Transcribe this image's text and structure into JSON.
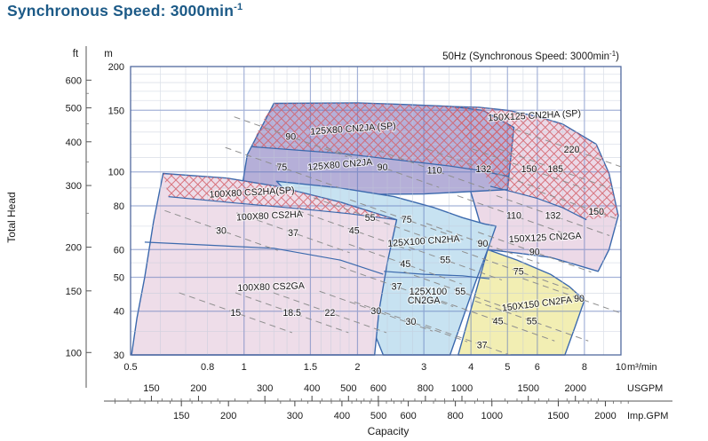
{
  "title": {
    "text": "Synchronous Speed: 3000min",
    "sup": "-1"
  },
  "chart_data": {
    "type": "area",
    "inner_title": {
      "prefix": "50Hz (Synchronous Speed: 3000min",
      "sup": "-1",
      "suffix": ")"
    },
    "axes": {
      "x": {
        "unit": "m³/min",
        "range": [
          0.5,
          10
        ],
        "labeled_ticks": [
          0.5,
          0.8,
          1,
          1.5,
          2,
          3,
          4,
          5,
          6,
          8,
          10
        ],
        "major": [
          1,
          1.5,
          2,
          3,
          4,
          5,
          6,
          8
        ],
        "minor": [
          0.6,
          0.7,
          0.8,
          0.9,
          1.1,
          1.2,
          1.3,
          1.4,
          1.6,
          1.7,
          1.8,
          1.9,
          2.2,
          2.4,
          2.6,
          2.8,
          3.5,
          4.5,
          5.5,
          7,
          9
        ]
      },
      "y": {
        "unit": "m",
        "label": "Total Head",
        "range": [
          30,
          200
        ],
        "labeled_ticks": [
          200,
          150,
          100,
          80,
          60,
          50,
          40,
          30
        ],
        "major": [
          40,
          50,
          60,
          80,
          100,
          150
        ],
        "minor": [
          35,
          45,
          55,
          70,
          90,
          110,
          120,
          130,
          140,
          160,
          170,
          180,
          190
        ]
      },
      "ft": {
        "unit": "ft",
        "labeled_ticks": [
          600,
          500,
          400,
          300,
          200,
          150,
          100
        ],
        "minor": [
          250,
          350,
          450,
          550
        ]
      },
      "usgpm": {
        "unit": "USGPM",
        "labeled_ticks": [
          150,
          200,
          300,
          400,
          500,
          600,
          800,
          1000,
          1500,
          2000
        ],
        "per_m3min": 264.172
      },
      "impgpm": {
        "unit": "Imp.GPM",
        "labeled_ticks": [
          150,
          200,
          300,
          400,
          500,
          600,
          800,
          1000,
          1500,
          2000
        ],
        "per_m3min": 219.969
      },
      "gpm_minor_step_ranges": [
        [
          100,
          200,
          10
        ],
        [
          200,
          600,
          25
        ],
        [
          600,
          1000,
          50
        ],
        [
          1000,
          2400,
          100
        ]
      ],
      "capacity_label": "Capacity"
    },
    "style": {
      "region_stroke": "#3b69ad",
      "grid_minor": "#c2cad9",
      "grid_major": "#5d76ba",
      "border": "#51699f",
      "hatch_color": "#d4606a",
      "dash_color": "#8f8f8f"
    },
    "regions": [
      {
        "id": "150x125-family",
        "fill": "#ecd9e7",
        "outline": [
          [
            3.37,
            154
          ],
          [
            4.2,
            153
          ],
          [
            5.0,
            150
          ],
          [
            6.0,
            144
          ],
          [
            7.0,
            137
          ],
          [
            8.6,
            120
          ],
          [
            9.3,
            99
          ],
          [
            9.84,
            75
          ],
          [
            9.3,
            60
          ],
          [
            8.7,
            52
          ],
          [
            7.5,
            54.5
          ],
          [
            6.5,
            57
          ],
          [
            5.4,
            58.5
          ],
          [
            4.43,
            60
          ],
          [
            4.1,
            80
          ],
          [
            3.7,
            115
          ]
        ],
        "hatch": [
          [
            3.37,
            154
          ],
          [
            4.2,
            153
          ],
          [
            5.0,
            150
          ],
          [
            6.0,
            144
          ],
          [
            7.0,
            137
          ],
          [
            8.6,
            120
          ],
          [
            9.3,
            99
          ],
          [
            9.84,
            75
          ],
          [
            8.1,
            73
          ],
          [
            7.0,
            79
          ],
          [
            6.0,
            84
          ],
          [
            5.2,
            87.5
          ],
          [
            4.5,
            91
          ],
          [
            4.0,
            120
          ]
        ],
        "boundaries": [
          [
            [
              4.5,
              91
            ],
            [
              5.2,
              87.5
            ],
            [
              6.0,
              84
            ],
            [
              7.0,
              79
            ],
            [
              8.1,
              73
            ]
          ]
        ],
        "names": [
          {
            "text": "150X125 CN2HA (SP)",
            "v": 5.9,
            "m": 145,
            "rot": -3
          },
          {
            "text": "150X125 CN2GA",
            "v": 6.3,
            "m": 65,
            "rot": -3
          }
        ],
        "powers": [
          {
            "text": "150",
            "v": 5.7,
            "m": 102
          },
          {
            "text": "185",
            "v": 6.7,
            "m": 102
          },
          {
            "text": "220",
            "v": 7.4,
            "m": 116
          },
          {
            "text": "110",
            "v": 5.2,
            "m": 75
          },
          {
            "text": "132",
            "v": 6.6,
            "m": 75
          },
          {
            "text": "150",
            "v": 8.6,
            "m": 77
          },
          {
            "text": "90",
            "v": 5.9,
            "m": 59
          }
        ]
      },
      {
        "id": "125x80-family",
        "fill": "#b5afd8",
        "outline": [
          [
            0.98,
            86
          ],
          [
            1.02,
            112
          ],
          [
            1.2,
            157
          ],
          [
            2.0,
            157.5
          ],
          [
            2.6,
            156
          ],
          [
            3.5,
            154
          ],
          [
            4.3,
            150
          ],
          [
            5.2,
            134
          ],
          [
            5.0,
            89
          ],
          [
            3.0,
            86.5
          ],
          [
            1.5,
            86
          ]
        ],
        "hatch": [
          [
            1.05,
            118
          ],
          [
            1.1,
            135
          ],
          [
            1.2,
            157
          ],
          [
            2.0,
            157.5
          ],
          [
            2.6,
            156
          ],
          [
            3.5,
            154
          ],
          [
            4.3,
            150
          ],
          [
            5.2,
            134
          ],
          [
            5.05,
            97
          ],
          [
            4.2,
            101
          ],
          [
            3.5,
            104
          ],
          [
            2.6,
            108
          ],
          [
            1.8,
            113
          ]
        ],
        "boundaries": [
          [
            [
              1.05,
              118
            ],
            [
              1.8,
              113
            ],
            [
              2.6,
              108
            ],
            [
              3.5,
              104
            ],
            [
              4.2,
              101
            ],
            [
              5.05,
              97
            ]
          ]
        ],
        "names": [
          {
            "text": "125X80 CN2JA (SP)",
            "v": 1.95,
            "m": 133,
            "rot": -4
          },
          {
            "text": "125X80 CN2JA",
            "v": 1.8,
            "m": 105,
            "rot": -5
          }
        ],
        "powers": [
          {
            "text": "90",
            "v": 1.33,
            "m": 126
          },
          {
            "text": "75",
            "v": 1.26,
            "m": 103
          },
          {
            "text": "90",
            "v": 2.33,
            "m": 103
          },
          {
            "text": "110",
            "v": 3.2,
            "m": 101
          },
          {
            "text": "132",
            "v": 4.32,
            "m": 102
          }
        ]
      },
      {
        "id": "125x100-family",
        "fill": "#c7e2f1",
        "outline": [
          [
            2.34,
            30
          ],
          [
            1.9,
            52
          ],
          [
            1.55,
            72
          ],
          [
            1.22,
            94
          ],
          [
            1.8,
            90
          ],
          [
            2.5,
            85
          ],
          [
            3.2,
            79
          ],
          [
            3.8,
            74
          ],
          [
            4.35,
            71
          ],
          [
            4.66,
            70
          ],
          [
            4.43,
            60
          ],
          [
            4.1,
            48
          ],
          [
            3.8,
            38
          ],
          [
            3.52,
            30
          ]
        ],
        "boundaries": [
          [
            [
              2.35,
              52
            ],
            [
              3.0,
              51
            ],
            [
              3.8,
              50.5
            ],
            [
              4.48,
              49.5
            ]
          ]
        ],
        "names": [
          {
            "text": "125X100 CN2HA",
            "v": 3.0,
            "m": 63.5,
            "rot": -4
          },
          {
            "text": "125X100",
            "v": 3.08,
            "m": 45.5,
            "rot": 0
          },
          {
            "text": "CN2GA",
            "v": 3.0,
            "m": 43,
            "rot": 0
          }
        ],
        "powers": [
          {
            "text": "75",
            "v": 2.7,
            "m": 73
          },
          {
            "text": "90",
            "v": 4.3,
            "m": 62.5
          },
          {
            "text": "45",
            "v": 2.68,
            "m": 54.5
          },
          {
            "text": "55",
            "v": 3.42,
            "m": 56
          },
          {
            "text": "37",
            "v": 2.54,
            "m": 47
          },
          {
            "text": "55",
            "v": 3.75,
            "m": 45.5
          },
          {
            "text": "30",
            "v": 2.77,
            "m": 37.3
          }
        ]
      },
      {
        "id": "150x150-family",
        "fill": "#f2eeb3",
        "outline": [
          [
            4.43,
            60
          ],
          [
            5.3,
            56
          ],
          [
            6.5,
            51
          ],
          [
            7.3,
            47
          ],
          [
            8.0,
            43
          ],
          [
            7.55,
            36
          ],
          [
            7.1,
            30
          ],
          [
            3.7,
            30
          ]
        ],
        "names": [
          {
            "text": "150X150 CN2FA",
            "v": 6.0,
            "m": 42,
            "rot": -7
          }
        ],
        "powers": [
          {
            "text": "75",
            "v": 5.35,
            "m": 52
          },
          {
            "text": "90",
            "v": 7.75,
            "m": 43.5
          },
          {
            "text": "45",
            "v": 4.72,
            "m": 37.5
          },
          {
            "text": "55",
            "v": 5.8,
            "m": 37.5
          },
          {
            "text": "37",
            "v": 4.28,
            "m": 32
          }
        ]
      },
      {
        "id": "100x80-family",
        "fill": "#eedde9",
        "outline": [
          [
            0.503,
            30
          ],
          [
            0.52,
            38.3
          ],
          [
            0.545,
            50
          ],
          [
            0.575,
            72
          ],
          [
            0.61,
            99
          ],
          [
            0.9,
            96
          ],
          [
            1.22,
            91
          ],
          [
            1.8,
            82
          ],
          [
            2.54,
            73
          ],
          [
            2.4,
            55
          ],
          [
            2.28,
            40
          ],
          [
            2.22,
            30
          ]
        ],
        "hatch": [
          [
            0.61,
            99
          ],
          [
            0.9,
            96
          ],
          [
            1.22,
            91
          ],
          [
            1.8,
            82
          ],
          [
            2.54,
            73
          ],
          [
            1.9,
            76
          ],
          [
            1.4,
            78.5
          ],
          [
            0.95,
            81.5
          ],
          [
            0.63,
            85
          ]
        ],
        "boundaries": [
          [
            [
              0.63,
              85
            ],
            [
              0.95,
              81.5
            ],
            [
              1.4,
              78.5
            ],
            [
              1.9,
              76
            ],
            [
              2.54,
              73
            ]
          ],
          [
            [
              0.545,
              63
            ],
            [
              1.2,
              60.5
            ],
            [
              1.8,
              56
            ],
            [
              2.34,
              51
            ]
          ]
        ],
        "names": [
          {
            "text": "100X80 CS2HA(SP)",
            "v": 1.05,
            "m": 87.5,
            "rot": -3
          },
          {
            "text": "100X80 CS2HA",
            "v": 1.17,
            "m": 75,
            "rot": -3
          },
          {
            "text": "100X80 CS2GA",
            "v": 1.18,
            "m": 47,
            "rot": -2
          }
        ],
        "powers": [
          {
            "text": "30",
            "v": 0.87,
            "m": 68
          },
          {
            "text": "37",
            "v": 1.35,
            "m": 67
          },
          {
            "text": "45",
            "v": 1.96,
            "m": 68
          },
          {
            "text": "55",
            "v": 2.16,
            "m": 74
          },
          {
            "text": "15",
            "v": 0.95,
            "m": 39.6
          },
          {
            "text": "18.5",
            "v": 1.34,
            "m": 39.6
          },
          {
            "text": "22",
            "v": 1.69,
            "m": 39.6
          },
          {
            "text": "30",
            "v": 2.24,
            "m": 40
          }
        ]
      }
    ]
  }
}
